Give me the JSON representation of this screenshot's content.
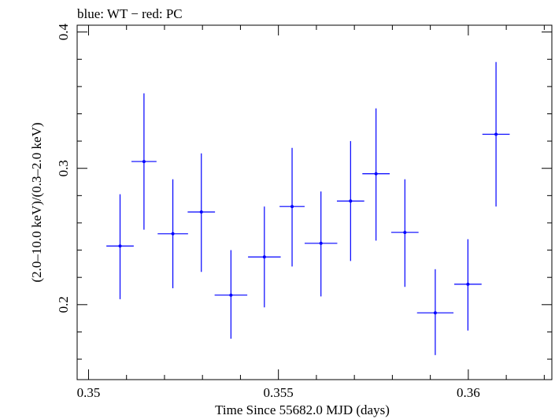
{
  "chart_data": {
    "type": "scatter",
    "title": "blue: WT − red: PC",
    "xlabel": "Time Since 55682.0 MJD (days)",
    "ylabel": "(2.0–10.0 keV)/(0.3–2.0 keV)",
    "xlim": [
      0.3497,
      0.3622
    ],
    "ylim": [
      0.145,
      0.405
    ],
    "x_ticks": [
      0.35,
      0.355,
      0.36
    ],
    "x_tick_labels": [
      "0.35",
      "0.355",
      "0.36"
    ],
    "y_ticks": [
      0.2,
      0.3,
      0.4
    ],
    "y_tick_labels": [
      "0.2",
      "0.3",
      "0.4"
    ],
    "x_minor_step": 0.001,
    "y_minor_step": 0.02,
    "grid": false,
    "series": [
      {
        "color": "#0000ff",
        "points": [
          {
            "x": 0.35083,
            "xerr": 0.00036,
            "y": 0.243,
            "ylo": 0.204,
            "yhi": 0.281
          },
          {
            "x": 0.35146,
            "xerr": 0.00033,
            "y": 0.305,
            "ylo": 0.255,
            "yhi": 0.355
          },
          {
            "x": 0.35222,
            "xerr": 0.0004,
            "y": 0.252,
            "ylo": 0.212,
            "yhi": 0.292
          },
          {
            "x": 0.35297,
            "xerr": 0.00036,
            "y": 0.268,
            "ylo": 0.224,
            "yhi": 0.311
          },
          {
            "x": 0.35375,
            "xerr": 0.00043,
            "y": 0.207,
            "ylo": 0.175,
            "yhi": 0.24
          },
          {
            "x": 0.35463,
            "xerr": 0.00043,
            "y": 0.235,
            "ylo": 0.198,
            "yhi": 0.272
          },
          {
            "x": 0.35536,
            "xerr": 0.00033,
            "y": 0.272,
            "ylo": 0.228,
            "yhi": 0.315
          },
          {
            "x": 0.35612,
            "xerr": 0.00043,
            "y": 0.245,
            "ylo": 0.206,
            "yhi": 0.283
          },
          {
            "x": 0.3569,
            "xerr": 0.00036,
            "y": 0.276,
            "ylo": 0.232,
            "yhi": 0.32
          },
          {
            "x": 0.35757,
            "xerr": 0.00036,
            "y": 0.296,
            "ylo": 0.247,
            "yhi": 0.344
          },
          {
            "x": 0.35833,
            "xerr": 0.00036,
            "y": 0.253,
            "ylo": 0.213,
            "yhi": 0.292
          },
          {
            "x": 0.35913,
            "xerr": 0.00048,
            "y": 0.194,
            "ylo": 0.163,
            "yhi": 0.226
          },
          {
            "x": 0.35999,
            "xerr": 0.00036,
            "y": 0.215,
            "ylo": 0.181,
            "yhi": 0.248
          },
          {
            "x": 0.36073,
            "xerr": 0.00036,
            "y": 0.325,
            "ylo": 0.272,
            "yhi": 0.378
          }
        ]
      }
    ]
  }
}
